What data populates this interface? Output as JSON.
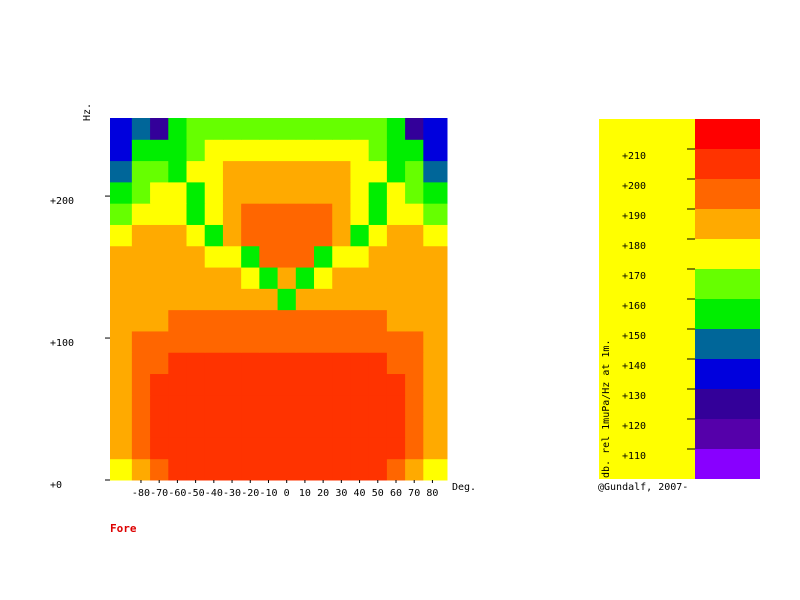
{
  "chart_data": {
    "type": "heatmap",
    "xlabel": "Deg.",
    "ylabel": "Hz.",
    "annotation": "Fore",
    "credit": "@Gundalf, 2007-",
    "xlim": [
      -97,
      88
    ],
    "ylim": [
      0,
      255
    ],
    "xticks": [
      -80,
      -70,
      -60,
      -50,
      -40,
      -30,
      -20,
      -10,
      0,
      10,
      20,
      30,
      40,
      50,
      60,
      70,
      80
    ],
    "yticks": [
      {
        "value": 0,
        "label": "+0"
      },
      {
        "value": 100,
        "label": "+100"
      },
      {
        "value": 200,
        "label": "+200"
      }
    ],
    "xbins": [
      -97,
      -85,
      -75,
      -65,
      -55,
      -45,
      -35,
      -25,
      -15,
      -5,
      5,
      15,
      25,
      35,
      45,
      55,
      65,
      75,
      88
    ],
    "ybins": [
      0,
      15,
      30,
      45,
      60,
      75,
      90,
      105,
      120,
      135,
      150,
      165,
      180,
      195,
      210,
      225,
      240,
      255
    ],
    "z": [
      [
        175,
        185,
        195,
        205,
        205,
        205,
        205,
        205,
        205,
        205,
        205,
        205,
        205,
        205,
        205,
        195,
        185,
        175
      ],
      [
        185,
        195,
        205,
        205,
        205,
        205,
        205,
        205,
        205,
        205,
        205,
        205,
        205,
        205,
        205,
        205,
        195,
        185
      ],
      [
        185,
        195,
        205,
        205,
        205,
        205,
        205,
        205,
        205,
        205,
        205,
        205,
        205,
        205,
        205,
        205,
        195,
        185
      ],
      [
        185,
        195,
        205,
        205,
        205,
        205,
        205,
        205,
        205,
        205,
        205,
        205,
        205,
        205,
        205,
        205,
        195,
        185
      ],
      [
        185,
        195,
        205,
        205,
        205,
        205,
        205,
        205,
        205,
        205,
        205,
        205,
        205,
        205,
        205,
        205,
        195,
        185
      ],
      [
        185,
        195,
        195,
        205,
        205,
        205,
        205,
        205,
        205,
        205,
        205,
        205,
        205,
        205,
        205,
        195,
        195,
        185
      ],
      [
        185,
        195,
        195,
        195,
        195,
        195,
        195,
        195,
        195,
        195,
        195,
        195,
        195,
        195,
        195,
        195,
        195,
        185
      ],
      [
        185,
        185,
        185,
        195,
        195,
        195,
        195,
        195,
        195,
        195,
        195,
        195,
        195,
        195,
        195,
        185,
        185,
        185
      ],
      [
        185,
        185,
        185,
        185,
        185,
        185,
        185,
        185,
        185,
        155,
        185,
        185,
        185,
        185,
        185,
        185,
        185,
        185
      ],
      [
        185,
        185,
        185,
        185,
        185,
        185,
        185,
        175,
        155,
        185,
        155,
        175,
        185,
        185,
        185,
        185,
        185,
        185
      ],
      [
        185,
        185,
        185,
        185,
        185,
        175,
        175,
        155,
        195,
        195,
        195,
        155,
        175,
        175,
        185,
        185,
        185,
        185
      ],
      [
        175,
        185,
        185,
        185,
        175,
        155,
        185,
        195,
        195,
        195,
        195,
        195,
        185,
        155,
        175,
        185,
        185,
        175
      ],
      [
        165,
        175,
        175,
        175,
        155,
        175,
        185,
        195,
        195,
        195,
        195,
        195,
        185,
        175,
        155,
        175,
        175,
        165
      ],
      [
        155,
        165,
        175,
        175,
        155,
        175,
        185,
        185,
        185,
        185,
        185,
        185,
        185,
        175,
        155,
        175,
        165,
        155
      ],
      [
        145,
        165,
        165,
        155,
        175,
        175,
        185,
        185,
        185,
        185,
        185,
        185,
        185,
        175,
        175,
        155,
        165,
        145
      ],
      [
        135,
        155,
        155,
        155,
        165,
        175,
        175,
        175,
        175,
        175,
        175,
        175,
        175,
        175,
        165,
        155,
        155,
        135
      ],
      [
        135,
        145,
        125,
        155,
        165,
        165,
        165,
        165,
        165,
        165,
        165,
        165,
        165,
        165,
        165,
        155,
        125,
        135
      ]
    ],
    "colorbar": {
      "label": "db. rel 1muPa/Hz at 1m.",
      "bins": [
        100,
        110,
        120,
        130,
        140,
        150,
        160,
        170,
        180,
        190,
        200,
        210,
        220
      ],
      "colors": [
        "#8800ff",
        "#5500aa",
        "#330099",
        "#0000dd",
        "#006699",
        "#00ee00",
        "#66ff00",
        "#ffff00",
        "#ffaa00",
        "#ff6600",
        "#ff3300",
        "#ff0000"
      ],
      "ticks": [
        {
          "value": 110,
          "label": "+110"
        },
        {
          "value": 120,
          "label": "+120"
        },
        {
          "value": 130,
          "label": "+130"
        },
        {
          "value": 140,
          "label": "+140"
        },
        {
          "value": 150,
          "label": "+150"
        },
        {
          "value": 160,
          "label": "+160"
        },
        {
          "value": 170,
          "label": "+170"
        },
        {
          "value": 180,
          "label": "+180"
        },
        {
          "value": 190,
          "label": "+190"
        },
        {
          "value": 200,
          "label": "+200"
        },
        {
          "value": 210,
          "label": "+210"
        }
      ]
    }
  }
}
